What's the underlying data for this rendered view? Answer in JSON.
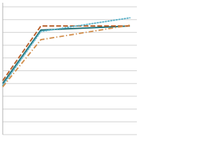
{
  "chart_data": {
    "type": "line",
    "x": [
      0,
      3,
      10
    ],
    "xlim": [
      0,
      10.5
    ],
    "ylim": [
      0,
      100
    ],
    "yticks": [
      0,
      10,
      20,
      30,
      40,
      50,
      60,
      70,
      80,
      90,
      100
    ],
    "grid": true,
    "series": [
      {
        "color": "#1f6e74",
        "dash": "solid",
        "values": [
          40,
          81.8,
          85
        ]
      },
      {
        "color": "#b8612c",
        "dash": "dashed",
        "values": [
          42.2,
          85,
          85
        ]
      },
      {
        "color": "#5fb3c9",
        "dash": "dotted",
        "values": [
          38.5,
          80.7,
          91.4
        ]
      },
      {
        "color": "#d3904f",
        "dash": "dashdot",
        "values": [
          37.4,
          74.3,
          85.6
        ]
      }
    ]
  }
}
